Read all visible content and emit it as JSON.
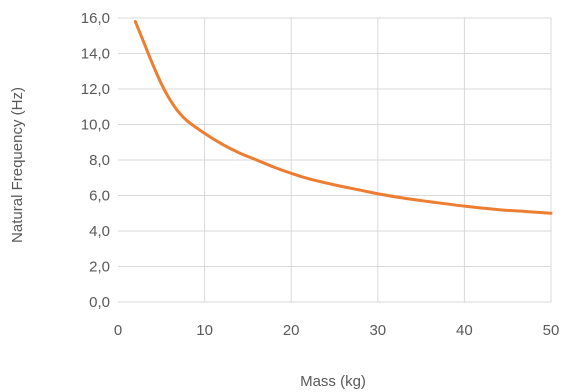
{
  "chart_data": {
    "type": "line",
    "title": "",
    "xlabel": "Mass (kg)",
    "ylabel": "Natural Frequency (Hz)",
    "xlim": [
      0,
      50
    ],
    "ylim": [
      0,
      16
    ],
    "xticks": [
      0,
      10,
      20,
      30,
      40,
      50
    ],
    "xtick_labels": [
      "0",
      "10",
      "20",
      "30",
      "40",
      "50"
    ],
    "yticks": [
      0,
      2,
      4,
      6,
      8,
      10,
      12,
      14,
      16
    ],
    "ytick_labels": [
      "0,0",
      "2,0",
      "4,0",
      "6,0",
      "8,0",
      "10,0",
      "12,0",
      "14,0",
      "16,0"
    ],
    "grid": true,
    "legend": "none",
    "series_color": "#ed7d31",
    "series": [
      {
        "x": [
          2,
          3,
          4,
          5,
          6,
          7,
          8,
          10,
          12,
          14,
          16,
          18,
          20,
          22,
          25,
          28,
          30,
          33,
          36,
          40,
          44,
          47,
          50
        ],
        "y": [
          15.8,
          14.6,
          13.4,
          12.3,
          11.4,
          10.7,
          10.2,
          9.5,
          8.9,
          8.4,
          8.0,
          7.6,
          7.25,
          6.95,
          6.6,
          6.3,
          6.1,
          5.85,
          5.65,
          5.4,
          5.2,
          5.1,
          5.0
        ]
      }
    ]
  }
}
